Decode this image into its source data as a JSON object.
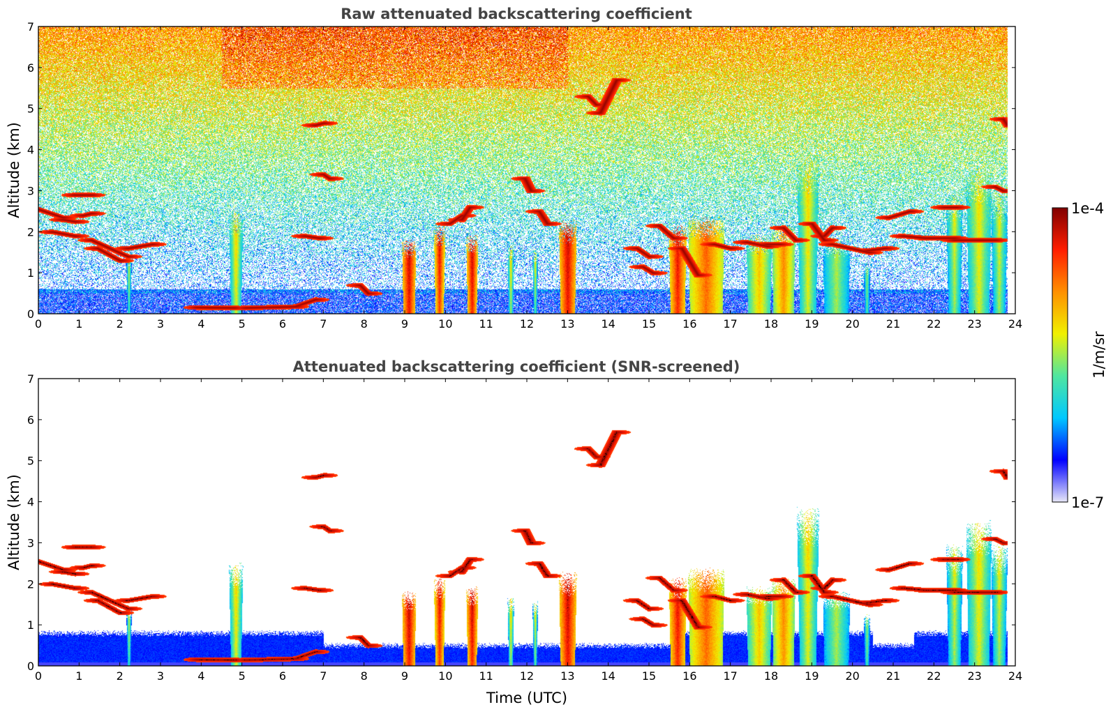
{
  "chart_data": [
    {
      "type": "heatmap",
      "title": "Raw attenuated backscattering coefficient",
      "xlabel": "",
      "ylabel": "Altitude (km)",
      "xlim": [
        0,
        24
      ],
      "ylim": [
        0,
        7
      ],
      "x_ticks": [
        "0",
        "1",
        "2",
        "3",
        "4",
        "5",
        "6",
        "7",
        "8",
        "9",
        "10",
        "11",
        "12",
        "13",
        "14",
        "15",
        "16",
        "17",
        "18",
        "19",
        "20",
        "21",
        "22",
        "23",
        "24"
      ],
      "y_ticks": [
        "0",
        "1",
        "2",
        "3",
        "4",
        "5",
        "6",
        "7"
      ],
      "screened": false,
      "grid": false
    },
    {
      "type": "heatmap",
      "title": "Attenuated backscattering coefficient (SNR-screened)",
      "xlabel": "Time (UTC)",
      "ylabel": "Altitude (km)",
      "xlim": [
        0,
        24
      ],
      "ylim": [
        0,
        7
      ],
      "x_ticks": [
        "0",
        "1",
        "2",
        "3",
        "4",
        "5",
        "6",
        "7",
        "8",
        "9",
        "10",
        "11",
        "12",
        "13",
        "14",
        "15",
        "16",
        "17",
        "18",
        "19",
        "20",
        "21",
        "22",
        "23",
        "24"
      ],
      "y_ticks": [
        "0",
        "1",
        "2",
        "3",
        "4",
        "5",
        "6",
        "7"
      ],
      "screened": true,
      "grid": false
    }
  ],
  "colorbar": {
    "label": "1/m/sr",
    "min_label": "1e-7",
    "max_label": "1e-4",
    "scale": "log",
    "colormap": [
      "#e8e8f8",
      "#0000ff",
      "#00c8ff",
      "#50e6a0",
      "#f0f000",
      "#ff9000",
      "#ff1e00",
      "#800000"
    ]
  },
  "features": {
    "precip_columns": [
      {
        "t": 2.22,
        "top": 1.3,
        "w": 0.08,
        "c": 0.42
      },
      {
        "t": 4.85,
        "top": 2.2,
        "w": 0.25,
        "c": 0.55
      },
      {
        "t": 9.1,
        "top": 1.6,
        "w": 0.28,
        "c": 0.88
      },
      {
        "t": 9.85,
        "top": 1.9,
        "w": 0.2,
        "c": 0.82
      },
      {
        "t": 10.65,
        "top": 1.7,
        "w": 0.22,
        "c": 0.86
      },
      {
        "t": 11.6,
        "top": 1.5,
        "w": 0.1,
        "c": 0.5
      },
      {
        "t": 12.2,
        "top": 1.4,
        "w": 0.08,
        "c": 0.45
      },
      {
        "t": 13.0,
        "top": 2.0,
        "w": 0.35,
        "c": 0.88
      },
      {
        "t": 15.7,
        "top": 1.9,
        "w": 0.35,
        "c": 0.85
      },
      {
        "t": 16.4,
        "top": 2.1,
        "w": 0.8,
        "c": 0.76
      },
      {
        "t": 17.7,
        "top": 1.7,
        "w": 0.55,
        "c": 0.62
      },
      {
        "t": 18.3,
        "top": 1.9,
        "w": 0.5,
        "c": 0.7
      },
      {
        "t": 18.9,
        "top": 3.4,
        "w": 0.4,
        "c": 0.55
      },
      {
        "t": 19.6,
        "top": 1.6,
        "w": 0.6,
        "c": 0.5
      },
      {
        "t": 20.35,
        "top": 1.1,
        "w": 0.12,
        "c": 0.42
      },
      {
        "t": 22.5,
        "top": 2.6,
        "w": 0.3,
        "c": 0.5
      },
      {
        "t": 23.1,
        "top": 3.1,
        "w": 0.5,
        "c": 0.55
      },
      {
        "t": 23.6,
        "top": 2.6,
        "w": 0.3,
        "c": 0.5
      }
    ],
    "cloud_segments": [
      [
        0.0,
        2.55,
        0.6,
        2.35
      ],
      [
        0.6,
        2.3,
        0.9,
        2.25
      ],
      [
        0.35,
        2.0,
        0.9,
        1.9
      ],
      [
        1.1,
        2.4,
        1.3,
        2.45
      ],
      [
        1.3,
        1.8,
        2.2,
        1.4
      ],
      [
        2.2,
        1.6,
        2.8,
        1.7
      ],
      [
        0.9,
        2.9,
        1.3,
        2.9
      ],
      [
        1.45,
        1.6,
        2.0,
        1.3
      ],
      [
        3.9,
        0.16,
        4.8,
        0.15
      ],
      [
        5.1,
        0.15,
        6.3,
        0.18
      ],
      [
        6.3,
        0.18,
        6.8,
        0.35
      ],
      [
        7.0,
        3.4,
        7.15,
        3.3
      ],
      [
        6.55,
        1.9,
        6.9,
        1.85
      ],
      [
        7.9,
        0.7,
        8.1,
        0.5
      ],
      [
        10.1,
        2.2,
        10.4,
        2.4
      ],
      [
        10.4,
        2.3,
        10.6,
        2.6
      ],
      [
        11.95,
        3.3,
        12.1,
        3.0
      ],
      [
        12.3,
        2.5,
        12.5,
        2.2
      ],
      [
        13.5,
        5.3,
        13.7,
        5.1
      ],
      [
        13.8,
        4.9,
        14.2,
        5.7
      ],
      [
        14.7,
        1.6,
        15.0,
        1.4
      ],
      [
        14.85,
        1.15,
        15.1,
        1.0
      ],
      [
        15.25,
        2.15,
        15.6,
        1.85
      ],
      [
        15.8,
        1.6,
        16.2,
        0.95
      ],
      [
        16.6,
        1.7,
        17.0,
        1.6
      ],
      [
        17.4,
        1.75,
        17.9,
        1.65
      ],
      [
        17.9,
        1.7,
        18.2,
        1.7
      ],
      [
        18.3,
        2.1,
        18.6,
        1.8
      ],
      [
        19.0,
        2.2,
        19.3,
        1.8
      ],
      [
        19.3,
        1.9,
        19.5,
        2.1
      ],
      [
        19.5,
        1.7,
        20.4,
        1.5
      ],
      [
        20.4,
        1.55,
        20.8,
        1.6
      ],
      [
        20.9,
        2.35,
        21.4,
        2.5
      ],
      [
        21.25,
        1.9,
        21.8,
        1.85
      ],
      [
        21.8,
        1.85,
        22.5,
        1.85
      ],
      [
        22.5,
        1.8,
        23.5,
        1.8
      ],
      [
        22.25,
        2.6,
        22.55,
        2.6
      ],
      [
        23.5,
        3.1,
        23.7,
        3.0
      ],
      [
        23.7,
        4.75,
        23.8,
        4.6
      ],
      [
        7.0,
        4.65,
        6.8,
        4.6
      ]
    ]
  }
}
